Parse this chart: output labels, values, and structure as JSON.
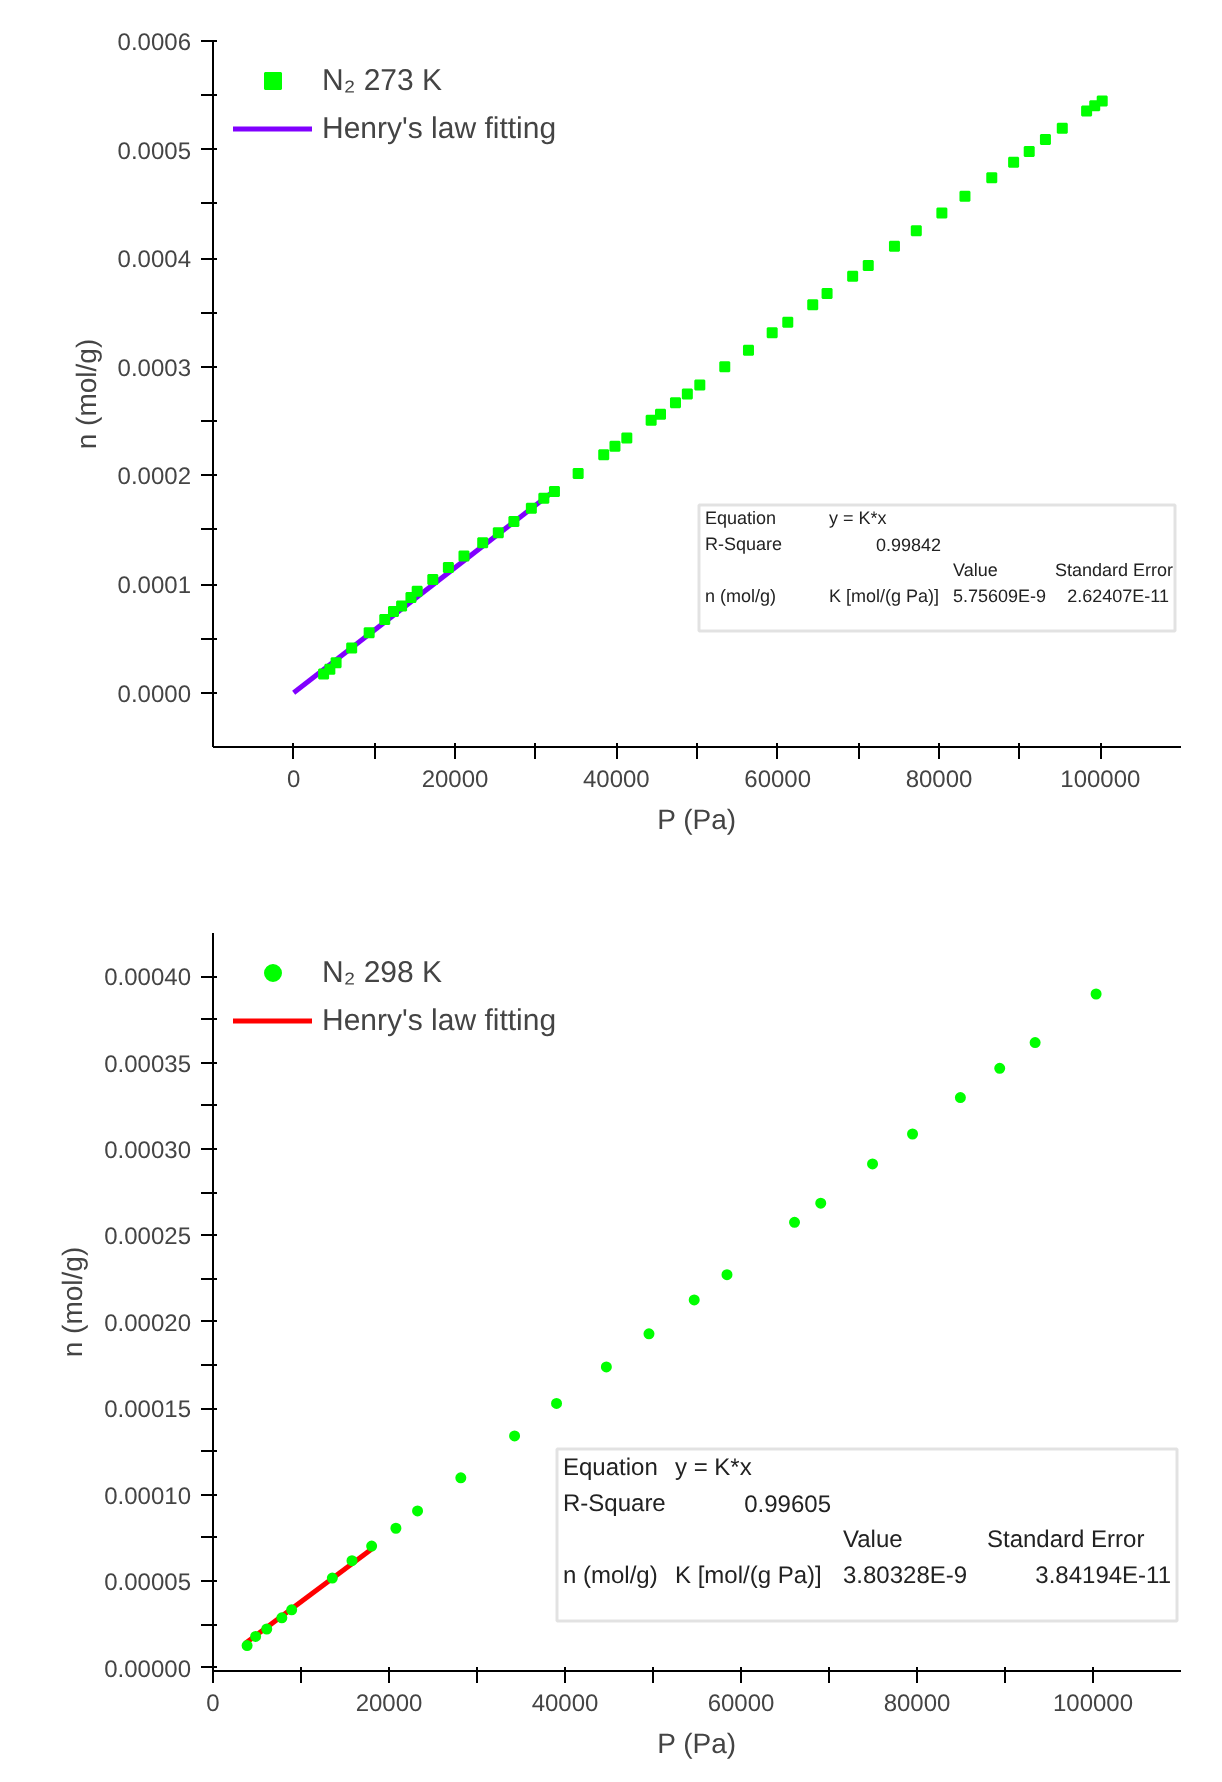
{
  "chart_data": [
    {
      "type": "scatter",
      "xlabel": "P (Pa)",
      "ylabel": "n (mol/g)",
      "legend": "top left",
      "grid": false,
      "xlim": [
        -10000,
        110000
      ],
      "ylim": [
        -5e-05,
        0.0006
      ],
      "xticks": [
        0,
        {
          "value": 10000,
          "label": null
        },
        20000,
        {
          "value": 30000,
          "label": null
        },
        40000,
        {
          "value": 50000,
          "label": null
        },
        60000,
        {
          "value": 70000,
          "label": null
        },
        80000,
        {
          "value": 90000,
          "label": null
        },
        100000
      ],
      "yticks": [
        {
          "value": 0,
          "label": "0.0000"
        },
        {
          "value": 5e-05,
          "label": null
        },
        {
          "value": 0.0001,
          "label": "0.0001"
        },
        {
          "value": 0.00015,
          "label": null
        },
        {
          "value": 0.0002,
          "label": "0.0002"
        },
        {
          "value": 0.00025,
          "label": null
        },
        {
          "value": 0.0003,
          "label": "0.0003"
        },
        {
          "value": 0.00035,
          "label": null
        },
        {
          "value": 0.0004,
          "label": "0.0004"
        },
        {
          "value": 0.00045,
          "label": null
        },
        {
          "value": 0.0005,
          "label": "0.0005"
        },
        {
          "value": 0.00055,
          "label": null
        },
        {
          "value": 0.0006,
          "label": "0.0006"
        }
      ],
      "annotations": [
        "Equation",
        "y = K*x",
        "R-Square",
        "0.99842",
        "Value",
        "Standard Error",
        "n (mol/g)",
        "K [mol/(g Pa)]",
        "5.75609E-9",
        "2.62407E-11"
      ],
      "series": [
        {
          "name": "N₂ 273 K",
          "marker": "square",
          "color": "#00ff00",
          "x": [
            3712,
            4486,
            5259,
            7193,
            9358,
            11292,
            12374,
            13380,
            14540,
            15313,
            17247,
            19180,
            21114,
            23434,
            25367,
            27301,
            29466,
            31013,
            32328,
            35267,
            38438,
            39830,
            41300,
            44316,
            45476,
            47332,
            48802,
            50348,
            53442,
            56381,
            59320,
            61253,
            64347,
            66125,
            69296,
            71230,
            74478,
            77185,
            80356,
            83218,
            86543,
            89250,
            91184,
            93195,
            95283,
            98299,
            99304,
            100232
          ],
          "values": [
            1.72e-05,
            2.15e-05,
            2.76e-05,
            4.11e-05,
            5.52e-05,
            6.75e-05,
            7.48e-05,
            7.98e-05,
            8.77e-05,
            9.33e-05,
            0.0001043,
            0.0001153,
            0.0001258,
            0.000138,
            0.0001472,
            0.0001577,
            0.0001699,
            0.0001791,
            0.0001853,
            0.0002018,
            0.000219,
            0.000227,
            0.0002344,
            0.0002509,
            0.0002564,
            0.0002669,
            0.0002749,
            0.0002834,
            0.0003,
            0.0003153,
            0.0003313,
            0.0003411,
            0.0003571,
            0.0003675,
            0.0003834,
            0.0003933,
            0.000411,
            0.0004252,
            0.0004417,
            0.0004571,
            0.0004742,
            0.0004884,
            0.0004982,
            0.0005092,
            0.0005196,
            0.0005356,
            0.0005405,
            0.0005448
          ]
        },
        {
          "name": "Henry's law fitting",
          "type": "line",
          "line_style": "solid",
          "color": "#8000ff",
          "x": [
            0,
            32400
          ],
          "values": [
            0,
            0.0001865
          ]
        }
      ]
    },
    {
      "type": "scatter",
      "xlabel": "P (Pa)",
      "ylabel": "n (mol/g)",
      "legend": "top left",
      "grid": false,
      "xlim": [
        0,
        110000
      ],
      "ylim": [
        -2e-06,
        0.000425
      ],
      "xticks": [
        0,
        {
          "value": 10000,
          "label": null
        },
        20000,
        {
          "value": 30000,
          "label": null
        },
        40000,
        {
          "value": 50000,
          "label": null
        },
        60000,
        {
          "value": 70000,
          "label": null
        },
        80000,
        {
          "value": 90000,
          "label": null
        },
        100000
      ],
      "yticks": [
        {
          "value": 0,
          "label": "0.00000"
        },
        {
          "value": 2.5e-05,
          "label": null
        },
        {
          "value": 5e-05,
          "label": "0.00005"
        },
        {
          "value": 7.5e-05,
          "label": null
        },
        {
          "value": 0.0001,
          "label": "0.00010"
        },
        {
          "value": 0.000125,
          "label": null
        },
        {
          "value": 0.00015,
          "label": "0.00015"
        },
        {
          "value": 0.000175,
          "label": null
        },
        {
          "value": 0.0002,
          "label": "0.00020"
        },
        {
          "value": 0.000225,
          "label": null
        },
        {
          "value": 0.00025,
          "label": "0.00025"
        },
        {
          "value": 0.000275,
          "label": null
        },
        {
          "value": 0.0003,
          "label": "0.00030"
        },
        {
          "value": 0.000325,
          "label": null
        },
        {
          "value": 0.00035,
          "label": "0.00035"
        },
        {
          "value": 0.000375,
          "label": null
        },
        {
          "value": 0.0004,
          "label": "0.00040"
        }
      ],
      "annotations": [
        "Equation",
        "y = K*x",
        "R-Square",
        "0.99605",
        "Value",
        "Standard Error",
        "n (mol/g)",
        "K [mol/(g Pa)]",
        "3.80328E-9",
        "3.84194E-11"
      ],
      "series": [
        {
          "name": "N₂ 298 K",
          "marker": "circle",
          "color": "#00ff00",
          "x": [
            3874,
            4843,
            6109,
            7823,
            8940,
            13559,
            15794,
            18029,
            20786,
            23244,
            28161,
            34270,
            39038,
            44700,
            49543,
            54683,
            58408,
            66082,
            69062,
            74948,
            79493,
            84930,
            89400,
            93423,
            100352
          ],
          "values": [
            1.27e-05,
            1.8e-05,
            2.23e-05,
            2.88e-05,
            3.34e-05,
            5.18e-05,
            6.18e-05,
            7.03e-05,
            8.06e-05,
            9.06e-05,
            0.0001098,
            0.000134,
            0.0001528,
            0.0001739,
            0.0001931,
            0.0002127,
            0.0002273,
            0.0002576,
            0.0002687,
            0.0002914,
            0.0003087,
            0.0003298,
            0.0003467,
            0.0003616,
            0.0003897
          ]
        },
        {
          "name": "Henry's law fitting",
          "type": "line",
          "line_style": "solid",
          "color": "#ff0000",
          "x": [
            3650,
            18000
          ],
          "values": [
            1.39e-05,
            6.85e-05
          ]
        }
      ]
    }
  ]
}
